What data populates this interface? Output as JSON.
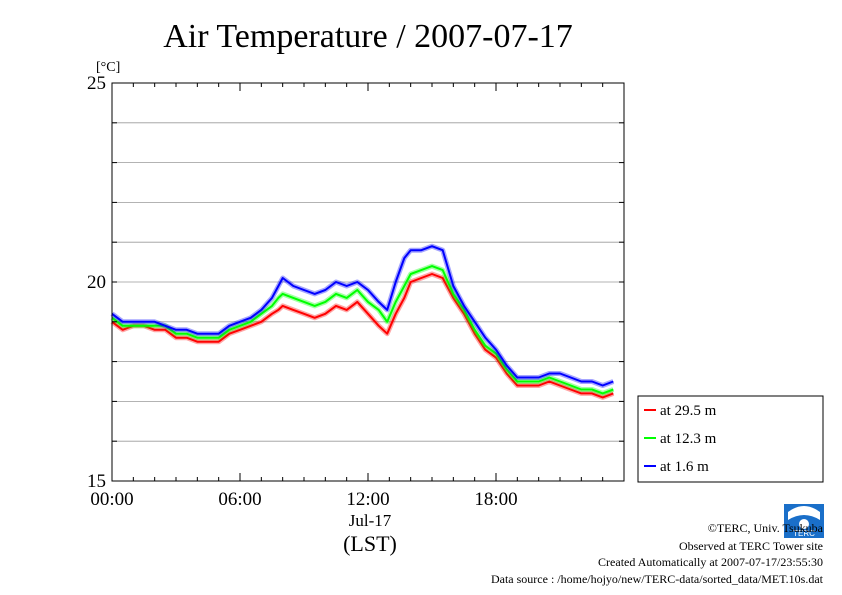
{
  "chart_data": {
    "type": "line",
    "title": "Air Temperature / 2007-07-17",
    "ylabel": "[°C]",
    "ylim": [
      15,
      25
    ],
    "yticks": [
      15,
      20,
      25
    ],
    "xlim": [
      0,
      24
    ],
    "xticks": [
      {
        "value": 0,
        "label": "00:00"
      },
      {
        "value": 6,
        "label": "06:00"
      },
      {
        "value": 12,
        "label": "12:00"
      },
      {
        "value": 18,
        "label": "18:00"
      }
    ],
    "x_date_label": "Jul-17",
    "xlabel": "(LST)",
    "grid": true,
    "legend_position": "bottom-right outside",
    "x": [
      0.0,
      0.5,
      1.0,
      1.5,
      2.0,
      2.5,
      3.0,
      3.5,
      4.0,
      4.5,
      5.0,
      5.5,
      6.0,
      6.5,
      7.0,
      7.5,
      7.8,
      8.0,
      8.5,
      9.0,
      9.5,
      10.0,
      10.5,
      11.0,
      11.5,
      12.0,
      12.5,
      12.9,
      13.3,
      13.7,
      14.0,
      14.5,
      15.0,
      15.5,
      16.0,
      16.5,
      17.0,
      17.5,
      18.0,
      18.5,
      19.0,
      19.5,
      20.0,
      20.5,
      21.0,
      21.5,
      22.0,
      22.5,
      23.0,
      23.5
    ],
    "series": [
      {
        "name": "at 29.5 m",
        "color": "#ff0000",
        "values": [
          19.0,
          18.8,
          18.9,
          18.9,
          18.8,
          18.8,
          18.6,
          18.6,
          18.5,
          18.5,
          18.5,
          18.7,
          18.8,
          18.9,
          19.0,
          19.2,
          19.3,
          19.4,
          19.3,
          19.2,
          19.1,
          19.2,
          19.4,
          19.3,
          19.5,
          19.2,
          18.9,
          18.7,
          19.2,
          19.6,
          20.0,
          20.1,
          20.2,
          20.1,
          19.6,
          19.2,
          18.7,
          18.3,
          18.1,
          17.7,
          17.4,
          17.4,
          17.4,
          17.5,
          17.4,
          17.3,
          17.2,
          17.2,
          17.1,
          17.2
        ]
      },
      {
        "name": "at 12.3 m",
        "color": "#00ff00",
        "values": [
          19.1,
          18.9,
          18.9,
          18.9,
          18.9,
          18.9,
          18.7,
          18.7,
          18.6,
          18.6,
          18.6,
          18.8,
          18.9,
          19.0,
          19.2,
          19.4,
          19.6,
          19.7,
          19.6,
          19.5,
          19.4,
          19.5,
          19.7,
          19.6,
          19.8,
          19.5,
          19.3,
          19.0,
          19.5,
          19.9,
          20.2,
          20.3,
          20.4,
          20.3,
          19.7,
          19.3,
          18.8,
          18.4,
          18.2,
          17.8,
          17.5,
          17.5,
          17.5,
          17.6,
          17.5,
          17.4,
          17.3,
          17.3,
          17.2,
          17.3
        ]
      },
      {
        "name": "at 1.6 m",
        "color": "#0000ff",
        "values": [
          19.2,
          19.0,
          19.0,
          19.0,
          19.0,
          18.9,
          18.8,
          18.8,
          18.7,
          18.7,
          18.7,
          18.9,
          19.0,
          19.1,
          19.3,
          19.6,
          19.9,
          20.1,
          19.9,
          19.8,
          19.7,
          19.8,
          20.0,
          19.9,
          20.0,
          19.8,
          19.5,
          19.3,
          20.0,
          20.6,
          20.8,
          20.8,
          20.9,
          20.8,
          19.9,
          19.4,
          19.0,
          18.6,
          18.3,
          17.9,
          17.6,
          17.6,
          17.6,
          17.7,
          17.7,
          17.6,
          17.5,
          17.5,
          17.4,
          17.5
        ]
      }
    ]
  },
  "legend": {
    "items": [
      {
        "label": "at 29.5 m",
        "color": "#ff0000"
      },
      {
        "label": "at 12.3 m",
        "color": "#00ff00"
      },
      {
        "label": "at 1.6 m",
        "color": "#0000ff"
      }
    ]
  },
  "credits": {
    "copyright": "©TERC, Univ. Tsukuba",
    "observed": "Observed at TERC Tower site",
    "created": "Created Automatically at 2007-07-17/23:55:30",
    "source": "Data source : /home/hojyo/new/TERC-data/sorted_data/MET.10s.dat"
  },
  "logo": {
    "text": "TERC",
    "color": "#1a6fc9"
  }
}
